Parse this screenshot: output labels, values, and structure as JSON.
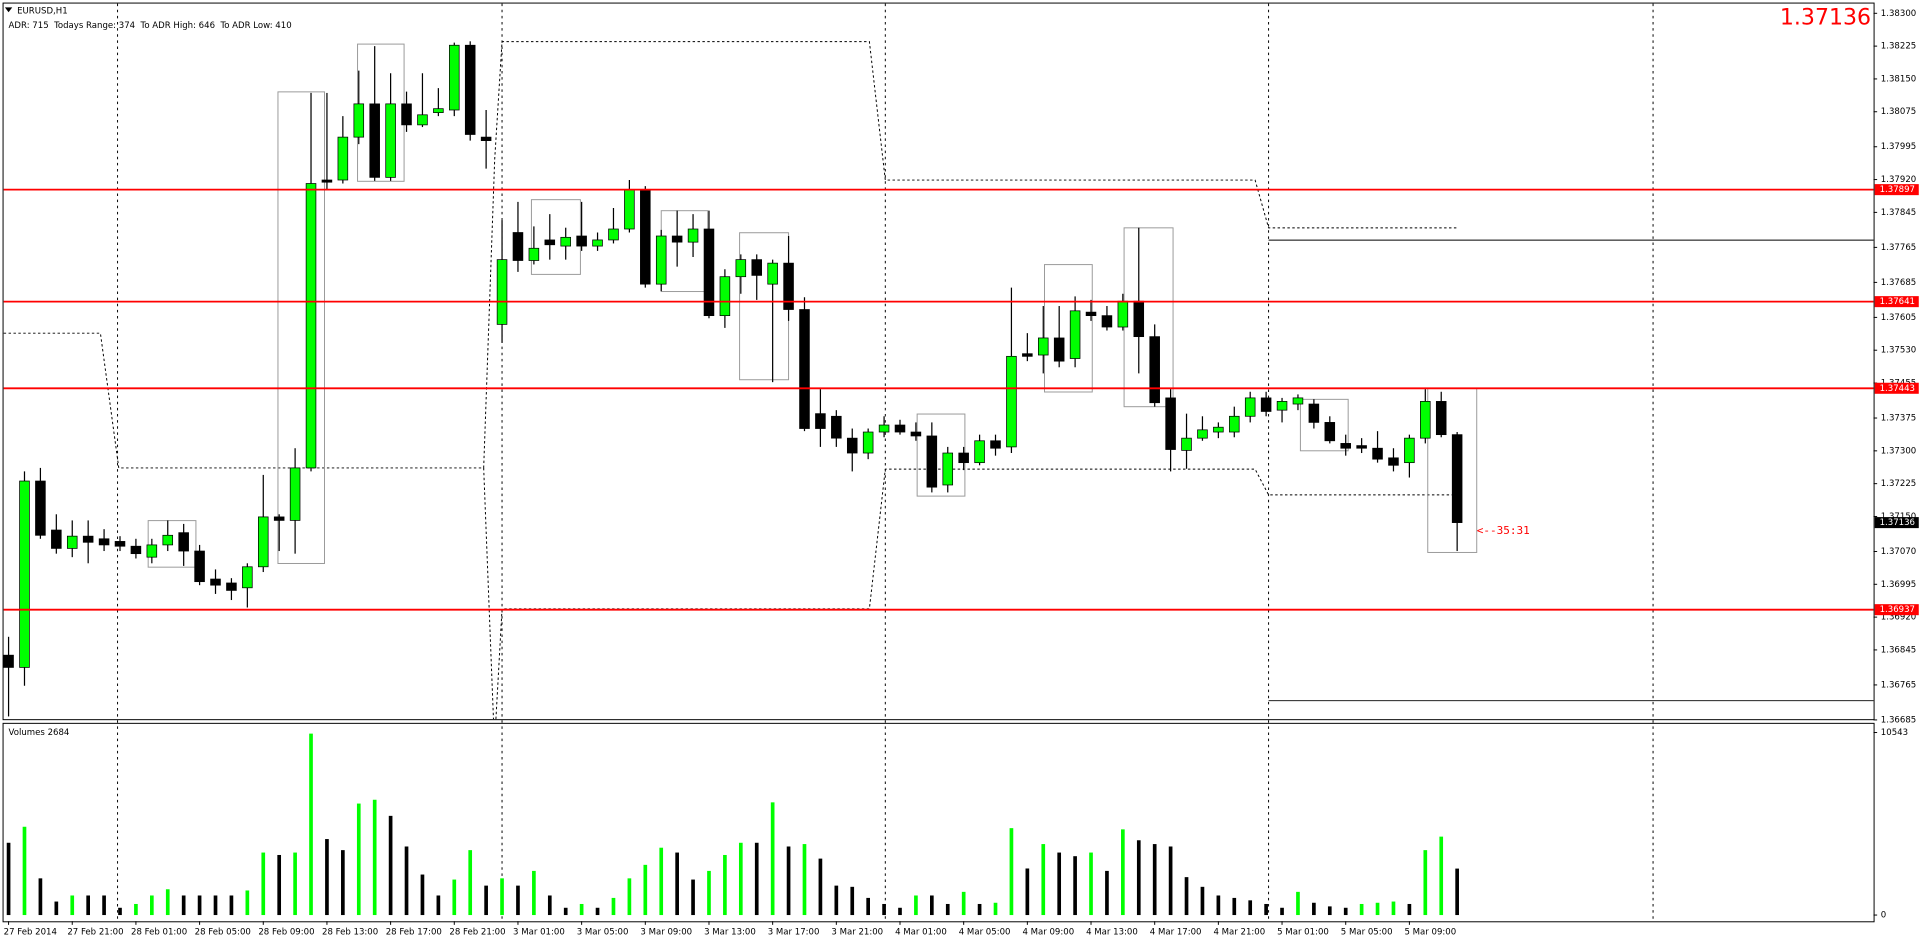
{
  "chart_data": {
    "type": "candlestick",
    "symbol": "EURUSD,H1",
    "info": "ADR: 715  Todays Range: 374  To ADR High: 646  To ADR Low: 410",
    "bid": 1.37136,
    "countdown": "<--35:31",
    "up_color": "#00ff00",
    "down_color": "#000000",
    "level_color": "#ff0000",
    "levels": [
      1.37897,
      1.37641,
      1.37443,
      1.36937
    ],
    "categories": [
      "27 Feb 2014",
      null,
      null,
      null,
      "27 Feb 21:00",
      null,
      null,
      null,
      "28 Feb 01:00",
      null,
      null,
      null,
      "28 Feb 05:00",
      null,
      null,
      null,
      "28 Feb 09:00",
      null,
      null,
      null,
      "28 Feb 13:00",
      null,
      null,
      null,
      "28 Feb 17:00",
      null,
      null,
      null,
      "28 Feb 21:00",
      null,
      null,
      null,
      "3 Mar 01:00",
      null,
      null,
      null,
      "3 Mar 05:00",
      null,
      null,
      null,
      "3 Mar 09:00",
      null,
      null,
      null,
      "3 Mar 13:00",
      null,
      null,
      null,
      "3 Mar 17:00",
      null,
      null,
      null,
      "3 Mar 21:00",
      null,
      null,
      null,
      "4 Mar 01:00",
      null,
      null,
      null,
      "4 Mar 05:00",
      null,
      null,
      null,
      "4 Mar 09:00",
      null,
      null,
      null,
      "4 Mar 13:00",
      null,
      null,
      null,
      "4 Mar 17:00",
      null,
      null,
      null,
      "4 Mar 21:00",
      null,
      null,
      null,
      "5 Mar 01:00",
      null,
      null,
      null,
      "5 Mar 05:00",
      null,
      null,
      null,
      "5 Mar 09:00",
      null,
      null,
      null
    ],
    "open": [
      1.36833,
      1.36805,
      1.37231,
      1.37119,
      1.37077,
      1.37105,
      1.37099,
      1.37093,
      1.37082,
      1.37057,
      1.37085,
      1.37113,
      1.37071,
      1.37007,
      1.36998,
      1.36987,
      1.37035,
      1.37149,
      1.37141,
      1.37261,
      1.37919,
      1.37919,
      1.38017,
      1.38093,
      1.37925,
      1.38093,
      1.38045,
      1.38073,
      1.38079,
      1.38227,
      1.38017,
      1.37589,
      1.37799,
      1.37735,
      1.37782,
      1.37768,
      1.37791,
      1.37768,
      1.37782,
      1.37807,
      1.37897,
      1.37681,
      1.37791,
      1.37777,
      1.37807,
      1.37609,
      1.37698,
      1.37737,
      1.37681,
      1.37729,
      1.37623,
      1.37385,
      1.37379,
      1.37329,
      1.37295,
      1.37343,
      1.37359,
      1.37343,
      1.37334,
      1.37222,
      1.37295,
      1.37273,
      1.37323,
      1.37309,
      1.37522,
      1.37519,
      1.37558,
      1.37511,
      1.37617,
      1.37609,
      1.37583,
      1.37642,
      1.37561,
      1.37421,
      1.37301,
      1.37329,
      1.37343,
      1.37343,
      1.37379,
      1.37421,
      1.37393,
      1.37407,
      1.37407,
      1.37365,
      1.37317,
      1.37312,
      1.37306,
      1.37284,
      1.37273,
      1.37329,
      1.37413,
      1.37337
    ],
    "high": [
      1.36875,
      1.37253,
      1.37261,
      1.37155,
      1.37141,
      1.37141,
      1.37121,
      1.37105,
      1.37099,
      1.37099,
      1.37141,
      1.37133,
      1.37085,
      1.37029,
      1.37009,
      1.37043,
      1.37245,
      1.37155,
      1.37306,
      1.38118,
      1.38118,
      1.38065,
      1.38169,
      1.38225,
      1.38163,
      1.38121,
      1.38163,
      1.38129,
      1.38233,
      1.38236,
      1.38079,
      1.37827,
      1.37869,
      1.37813,
      1.37841,
      1.3781,
      1.37869,
      1.37799,
      1.37855,
      1.37919,
      1.37905,
      1.37805,
      1.37849,
      1.37841,
      1.37849,
      1.37715,
      1.37749,
      1.37749,
      1.37737,
      1.37791,
      1.37651,
      1.37441,
      1.37393,
      1.37351,
      1.37351,
      1.37379,
      1.37371,
      1.37365,
      1.37365,
      1.37309,
      1.37309,
      1.37337,
      1.37337,
      1.37673,
      1.37569,
      1.37631,
      1.37631,
      1.37653,
      1.37645,
      1.37631,
      1.37659,
      1.3781,
      1.37589,
      1.37441,
      1.37385,
      1.37379,
      1.37365,
      1.37401,
      1.37435,
      1.37435,
      1.37421,
      1.37429,
      1.37418,
      1.37379,
      1.37337,
      1.37329,
      1.37345,
      1.37306,
      1.37337,
      1.37441,
      1.37435,
      1.37343
    ],
    "low": [
      1.36693,
      1.36763,
      1.37099,
      1.37065,
      1.37057,
      1.37043,
      1.37071,
      1.37071,
      1.37054,
      1.37043,
      1.37071,
      1.37037,
      1.36993,
      1.36973,
      1.36959,
      1.36942,
      1.37023,
      1.37071,
      1.37065,
      1.37253,
      1.37897,
      1.37911,
      1.38001,
      1.37917,
      1.37917,
      1.38029,
      1.3804,
      1.38065,
      1.38065,
      1.38009,
      1.37945,
      1.37547,
      1.37709,
      1.37726,
      1.37737,
      1.37737,
      1.37757,
      1.37757,
      1.37774,
      1.37799,
      1.37673,
      1.37665,
      1.37721,
      1.37743,
      1.37603,
      1.37581,
      1.37659,
      1.37645,
      1.37457,
      1.37597,
      1.37345,
      1.37309,
      1.37309,
      1.37253,
      1.37281,
      1.37331,
      1.37337,
      1.37323,
      1.37205,
      1.37205,
      1.37256,
      1.37267,
      1.37289,
      1.37295,
      1.37505,
      1.37477,
      1.37491,
      1.37491,
      1.37597,
      1.37575,
      1.37575,
      1.37477,
      1.37401,
      1.37253,
      1.37259,
      1.37323,
      1.37329,
      1.37331,
      1.37365,
      1.37379,
      1.37365,
      1.37393,
      1.37351,
      1.37317,
      1.37289,
      1.37295,
      1.37273,
      1.37253,
      1.37239,
      1.37317,
      1.37331,
      1.37071
    ],
    "close": [
      1.36805,
      1.37231,
      1.37107,
      1.37077,
      1.37105,
      1.37091,
      1.37085,
      1.37082,
      1.37065,
      1.37085,
      1.37107,
      1.37071,
      1.37001,
      1.36993,
      1.36981,
      1.37035,
      1.37149,
      1.37141,
      1.37261,
      1.37911,
      1.37914,
      1.38017,
      1.38093,
      1.37925,
      1.38093,
      1.38045,
      1.38068,
      1.38082,
      1.38227,
      1.38023,
      1.38009,
      1.37737,
      1.37735,
      1.37763,
      1.37771,
      1.37788,
      1.37768,
      1.37782,
      1.37807,
      1.37897,
      1.37681,
      1.37791,
      1.37777,
      1.37807,
      1.37609,
      1.37698,
      1.37737,
      1.37701,
      1.37729,
      1.37623,
      1.37351,
      1.37351,
      1.37329,
      1.37295,
      1.37343,
      1.37359,
      1.37343,
      1.37334,
      1.37217,
      1.37295,
      1.37273,
      1.37323,
      1.37306,
      1.37516,
      1.37516,
      1.37558,
      1.37505,
      1.3762,
      1.37609,
      1.37583,
      1.37642,
      1.37561,
      1.3741,
      1.37303,
      1.37329,
      1.37348,
      1.37354,
      1.37379,
      1.37421,
      1.3739,
      1.37413,
      1.37421,
      1.37365,
      1.37323,
      1.37306,
      1.37306,
      1.37281,
      1.37267,
      1.37329,
      1.37413,
      1.37337,
      1.37136
    ],
    "ylim": [
      1.36687,
      1.38322
    ],
    "yticks": [
      {
        "value": 1.383,
        "label": "1.38300"
      },
      1.38225,
      {
        "value": 1.3815,
        "label": "1.38150"
      },
      1.38075,
      1.37995,
      {
        "value": 1.3792,
        "label": "1.37920"
      },
      1.37845,
      1.37765,
      1.37685,
      1.37605,
      {
        "value": 1.3753,
        "label": "1.37530"
      },
      1.37455,
      1.37375,
      {
        "value": 1.373,
        "label": "1.37300"
      },
      1.37225,
      {
        "value": 1.3715,
        "label": "1.37150"
      },
      {
        "value": 1.3707,
        "label": "1.37070"
      },
      1.36995,
      {
        "value": 1.3692,
        "label": "1.36920"
      },
      1.36845,
      1.36765,
      1.36685
    ],
    "volume": {
      "title": "Volumes 2684",
      "values": [
        4175,
        5100,
        2120,
        780,
        1130,
        1130,
        1130,
        420,
        640,
        1130,
        1490,
        1130,
        1130,
        1130,
        1130,
        1420,
        3610,
        3470,
        3610,
        10480,
        4390,
        3750,
        6440,
        6660,
        5730,
        3960,
        2340,
        1130,
        2050,
        3750,
        1700,
        2120,
        1700,
        2550,
        1130,
        420,
        640,
        420,
        990,
        2120,
        2900,
        3890,
        3610,
        2050,
        2550,
        3470,
        4175,
        4175,
        6510,
        3960,
        4100,
        3260,
        1700,
        1630,
        990,
        640,
        420,
        1130,
        1130,
        640,
        1340,
        640,
        710,
        5020,
        2690,
        4100,
        3610,
        3400,
        3610,
        2550,
        4950,
        4320,
        4100,
        3960,
        2190,
        1630,
        1130,
        990,
        850,
        640,
        420,
        1340,
        710,
        500,
        420,
        640,
        710,
        780,
        640,
        3750,
        4530,
        2684
      ],
      "ylim": [
        0,
        10543
      ],
      "yticks": [
        0,
        10543
      ]
    }
  }
}
